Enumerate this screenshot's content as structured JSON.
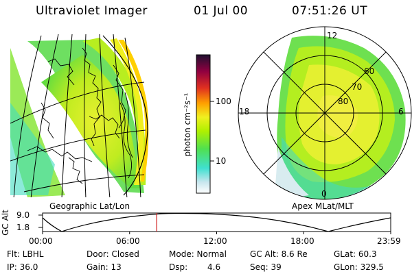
{
  "header": {
    "instrument": "Ultraviolet Imager",
    "date": "01 Jul 00",
    "time": "07:51:26 UT"
  },
  "geo_panel": {
    "label": "Geographic Lat/Lon"
  },
  "polar_panel": {
    "label": "Apex MLat/MLT",
    "lat_labels": [
      "60",
      "70",
      "80"
    ],
    "mlt_labels": {
      "top": "12",
      "left": "18",
      "right": "6",
      "bottom": "0"
    }
  },
  "colorbar": {
    "unit_label": "photon cm⁻²s⁻¹",
    "ticks": [
      "100",
      "10"
    ],
    "colors": [
      "#ffffff",
      "#d0e8f0",
      "#40e0d0",
      "#50e050",
      "#b0f000",
      "#f0f020",
      "#ffa000",
      "#e03020",
      "#900040",
      "#201030"
    ]
  },
  "altitude_plot": {
    "ylabel": "GC Alt",
    "yticks": [
      "9.0",
      "1.8"
    ],
    "xticks": [
      "00:00",
      "06:00",
      "12:00",
      "18:00",
      "23:59"
    ],
    "current_time_hours": 7.86,
    "marker_color": "#d02020"
  },
  "status": {
    "flt": "Flt: LBHL",
    "ip": "IP: 36.0",
    "door": "Door: Closed",
    "gain": "Gain: 13",
    "mode": "Mode: Normal",
    "dsp_label": "Dsp:",
    "dsp_value": "4.6",
    "gc_alt": "GC Alt: 8.6 Re",
    "seq": "Seq: 39",
    "glat": "GLat: 60.3",
    "glon": "GLon: 329.5"
  }
}
